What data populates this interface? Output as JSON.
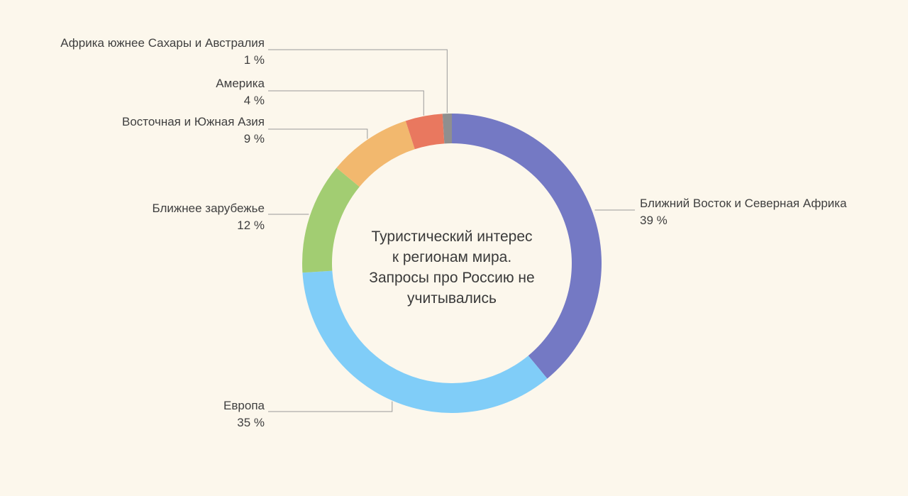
{
  "chart_data": {
    "type": "pie",
    "title": "Туристический интерес к регионам мира. Запросы про Россию не учитывались",
    "title_lines": [
      "Туристический интерес",
      "к регионам мира.",
      "Запросы про Россию не",
      "учитывались"
    ],
    "legend": "none",
    "slices": [
      {
        "label": "Ближний Восток и Северная Африка",
        "value": 39,
        "value_label": "39 %",
        "color": "#7479c4"
      },
      {
        "label": "Европа",
        "value": 35,
        "value_label": "35 %",
        "color": "#80cdf8"
      },
      {
        "label": "Ближнее зарубежье",
        "value": 12,
        "value_label": "12 %",
        "color": "#a2cd72"
      },
      {
        "label": "Восточная и Южная Азия",
        "value": 9,
        "value_label": "9 %",
        "color": "#f2b86e"
      },
      {
        "label": "Америка",
        "value": 4,
        "value_label": "4 %",
        "color": "#e9785f"
      },
      {
        "label": "Африка южнее Сахары и Австралия",
        "value": 1,
        "value_label": "1 %",
        "color": "#8f8f8f"
      }
    ]
  }
}
